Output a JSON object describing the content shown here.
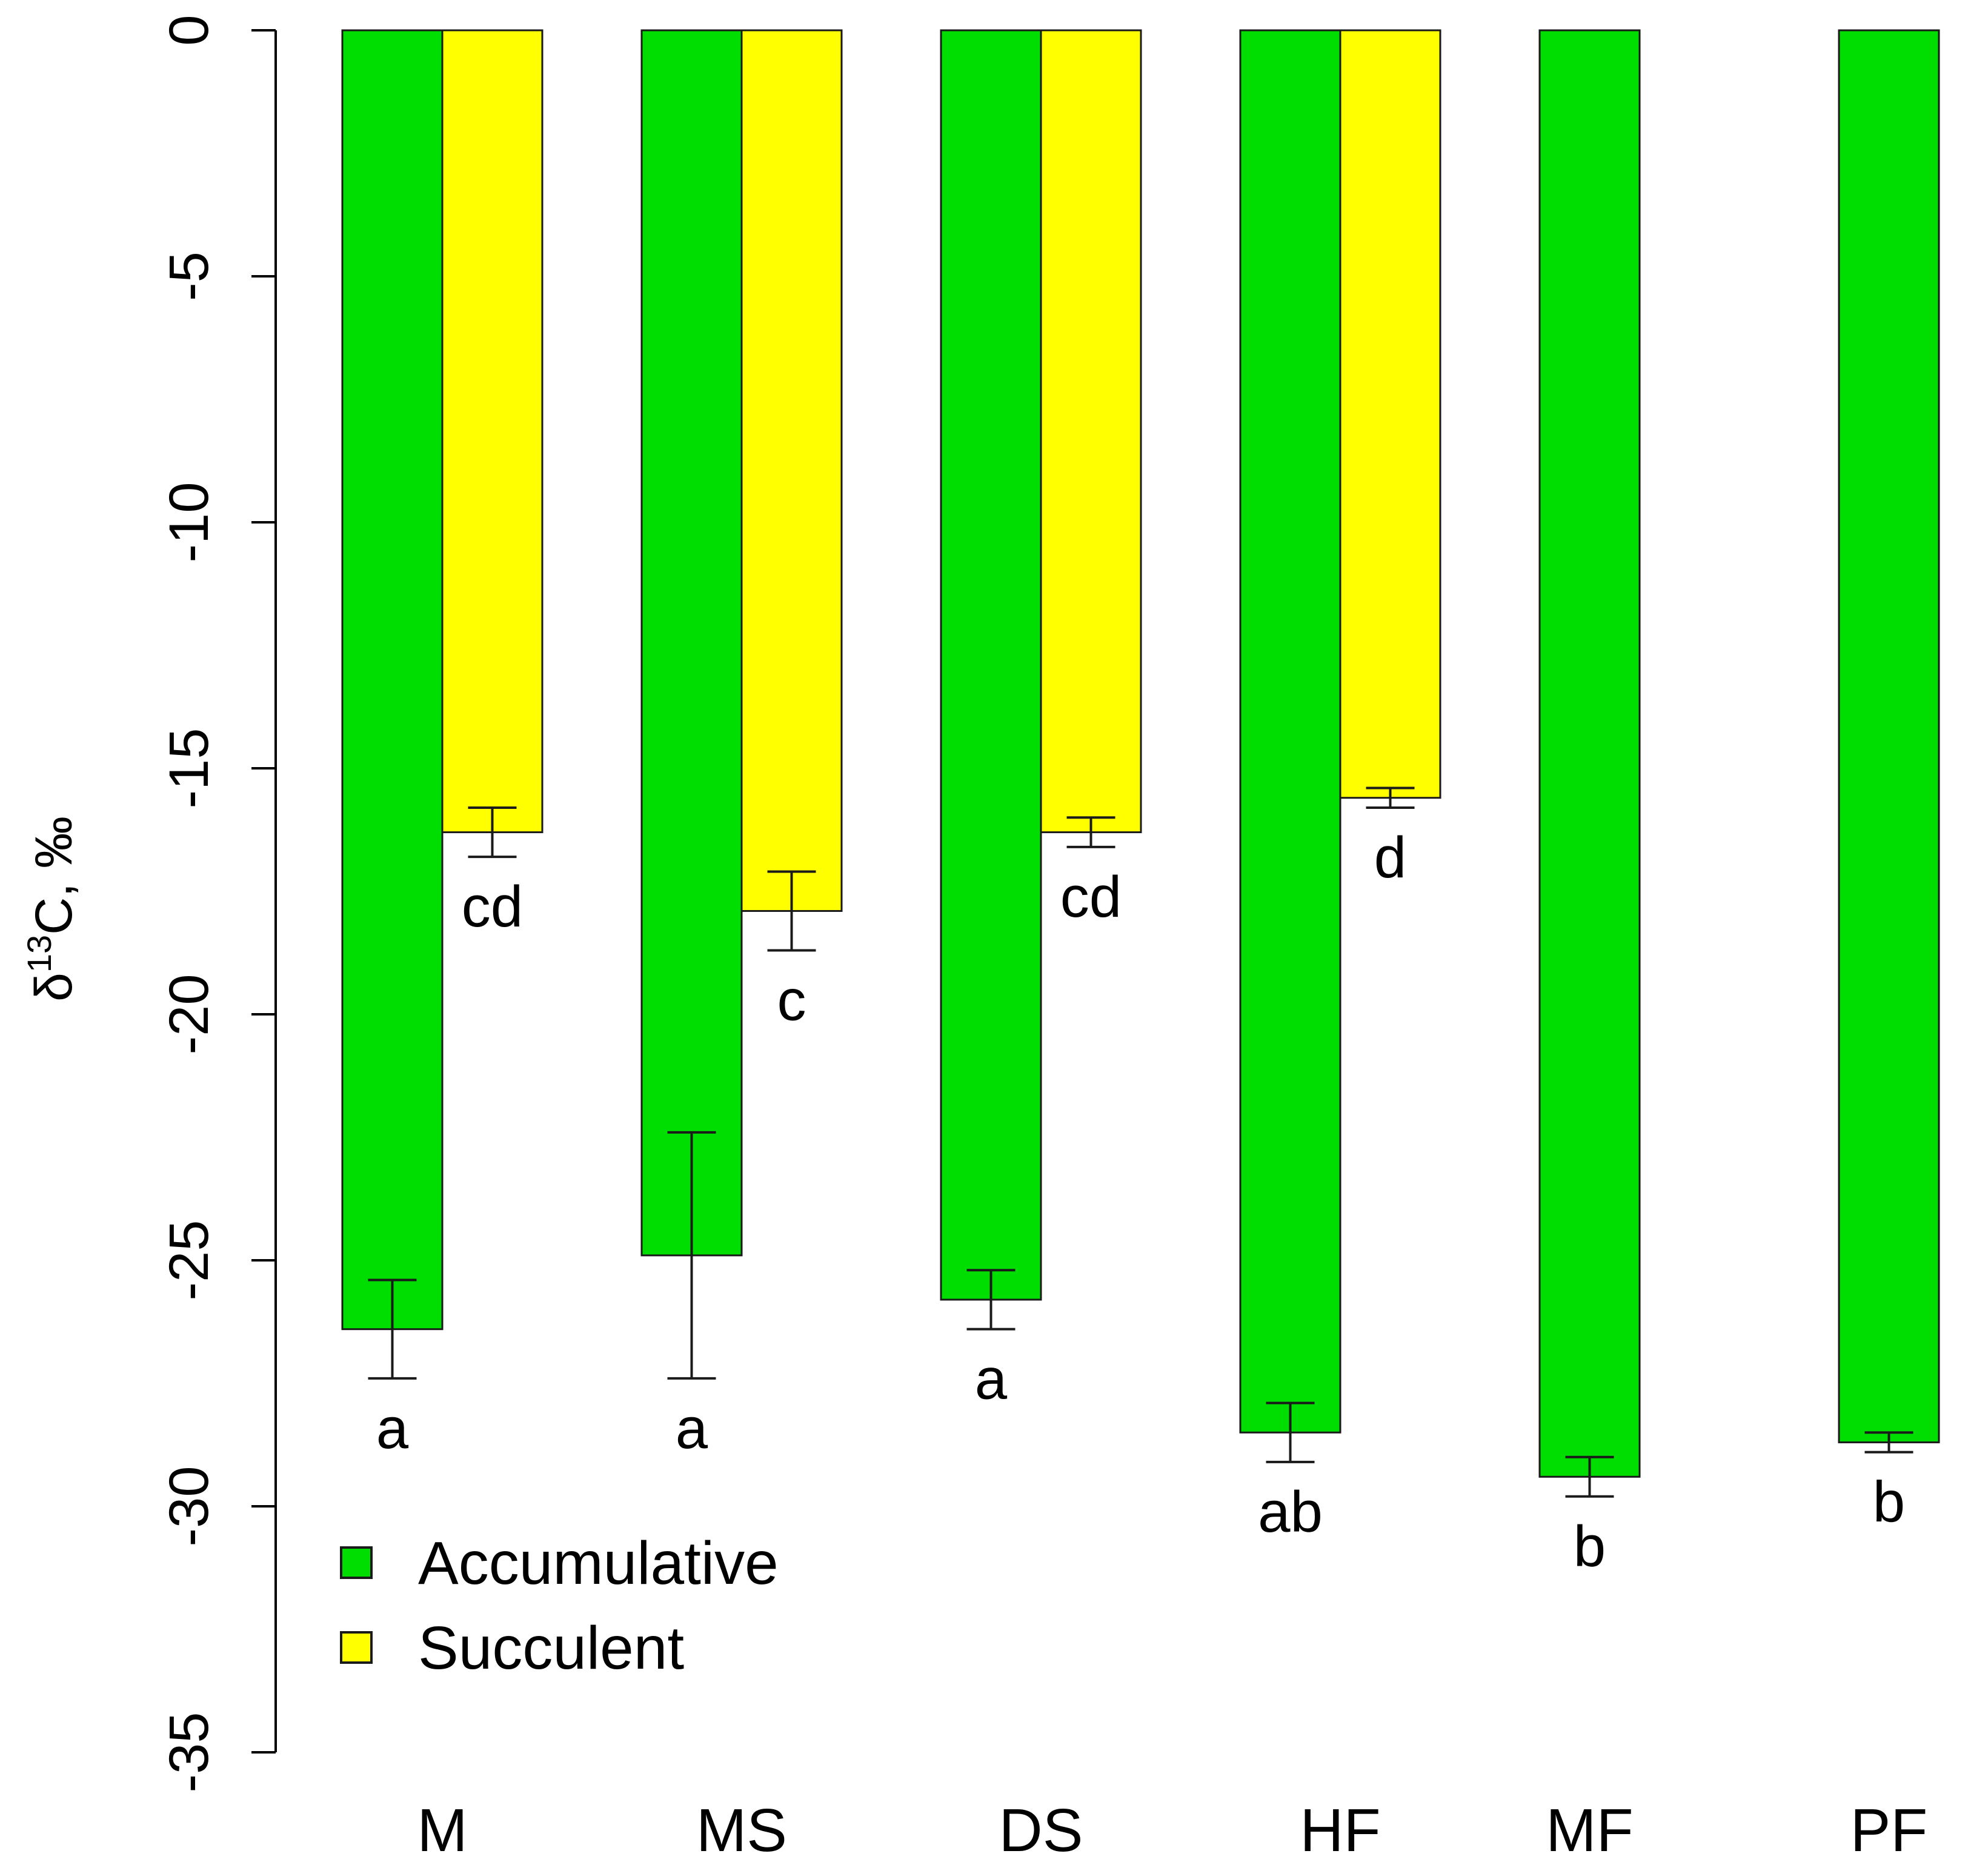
{
  "chart_data": {
    "type": "bar",
    "title": "",
    "xlabel": "",
    "ylabel": {
      "prefix": "δ",
      "superscript": "13",
      "suffix": "C, ‰"
    },
    "ylim": [
      -35,
      0
    ],
    "yticks": [
      0,
      -5,
      -10,
      -15,
      -20,
      -25,
      -30,
      -35
    ],
    "categories": [
      "M",
      "MS",
      "DS",
      "HF",
      "MF",
      "PF"
    ],
    "series": [
      {
        "name": "Accumulative",
        "color": "#00dd00",
        "values": [
          -26.4,
          -24.9,
          -25.8,
          -28.5,
          -29.4,
          -28.7
        ],
        "error_low": [
          -27.4,
          -27.4,
          -26.4,
          -29.1,
          -29.8,
          -28.9
        ],
        "error_high": [
          -25.4,
          -22.4,
          -25.2,
          -27.9,
          -29.0,
          -28.5
        ],
        "significance": [
          "a",
          "a",
          "a",
          "ab",
          "b",
          "b"
        ]
      },
      {
        "name": "Succulent",
        "color": "#ffff00",
        "values": [
          -16.3,
          -17.9,
          -16.3,
          -15.6,
          null,
          null
        ],
        "error_low": [
          -16.8,
          -18.7,
          -16.6,
          -15.8,
          null,
          null
        ],
        "error_high": [
          -15.8,
          -17.1,
          -16.0,
          -15.4,
          null,
          null
        ],
        "significance": [
          "cd",
          "c",
          "cd",
          "d",
          null,
          null
        ]
      }
    ],
    "legend": {
      "position": "bottom-left",
      "entries": [
        "Accumulative",
        "Succulent"
      ]
    }
  }
}
